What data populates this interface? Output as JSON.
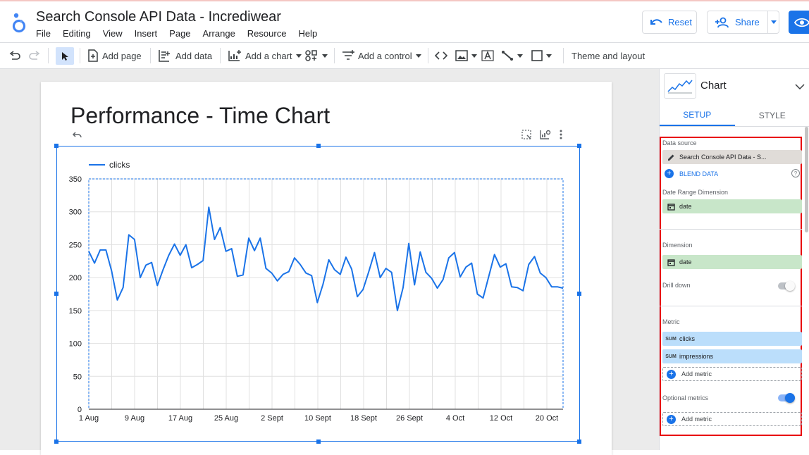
{
  "app": {
    "title": "Search Console API Data - Incrediwear",
    "menu": [
      "File",
      "Editing",
      "View",
      "Insert",
      "Page",
      "Arrange",
      "Resource",
      "Help"
    ],
    "reset_label": "Reset",
    "share_label": "Share"
  },
  "toolbar": {
    "add_page": "Add page",
    "add_data": "Add data",
    "add_chart": "Add a chart",
    "add_control": "Add a control",
    "theme_layout": "Theme and layout"
  },
  "report": {
    "page_title": "Performance - Time Chart"
  },
  "chart_data": {
    "type": "line",
    "legend": [
      "clicks"
    ],
    "legend_position": "top-left",
    "grid": true,
    "ylim": [
      0,
      350
    ],
    "yticks": [
      "0",
      "50",
      "100",
      "150",
      "200",
      "250",
      "300",
      "350"
    ],
    "xticks": [
      "1 Aug",
      "9 Aug",
      "17 Aug",
      "25 Aug",
      "2 Sept",
      "10 Sept",
      "18 Sept",
      "26 Sept",
      "4 Oct",
      "12 Oct",
      "20 Oct"
    ],
    "series": [
      {
        "name": "clicks",
        "color": "#1a73e8",
        "values": [
          240,
          222,
          242,
          242,
          210,
          166,
          185,
          265,
          258,
          200,
          219,
          223,
          188,
          212,
          234,
          251,
          234,
          250,
          215,
          220,
          226,
          307,
          258,
          276,
          240,
          244,
          202,
          204,
          260,
          241,
          260,
          214,
          207,
          195,
          205,
          209,
          230,
          220,
          207,
          203,
          162,
          190,
          227,
          212,
          205,
          231,
          213,
          171,
          182,
          209,
          238,
          200,
          214,
          208,
          150,
          185,
          252,
          189,
          239,
          208,
          199,
          184,
          197,
          230,
          238,
          201,
          216,
          222,
          175,
          169,
          202,
          235,
          216,
          221,
          186,
          185,
          180,
          220,
          232,
          207,
          200,
          186,
          186,
          184
        ]
      }
    ]
  },
  "panel": {
    "chart_type": "Chart",
    "tab_setup": "SETUP",
    "tab_style": "STYLE",
    "data_source_label": "Data source",
    "data_source": "Search Console API Data - S...",
    "blend_data": "BLEND DATA",
    "date_range_label": "Date Range Dimension",
    "date_range_value": "date",
    "dimension_label": "Dimension",
    "dimension_value": "date",
    "drill_down_label": "Drill down",
    "metric_label": "Metric",
    "metrics": [
      {
        "agg": "SUM",
        "name": "clicks"
      },
      {
        "agg": "SUM",
        "name": "impressions"
      }
    ],
    "add_metric": "Add metric",
    "optional_metrics_label": "Optional metrics",
    "add_metric_optional": "Add metric"
  }
}
